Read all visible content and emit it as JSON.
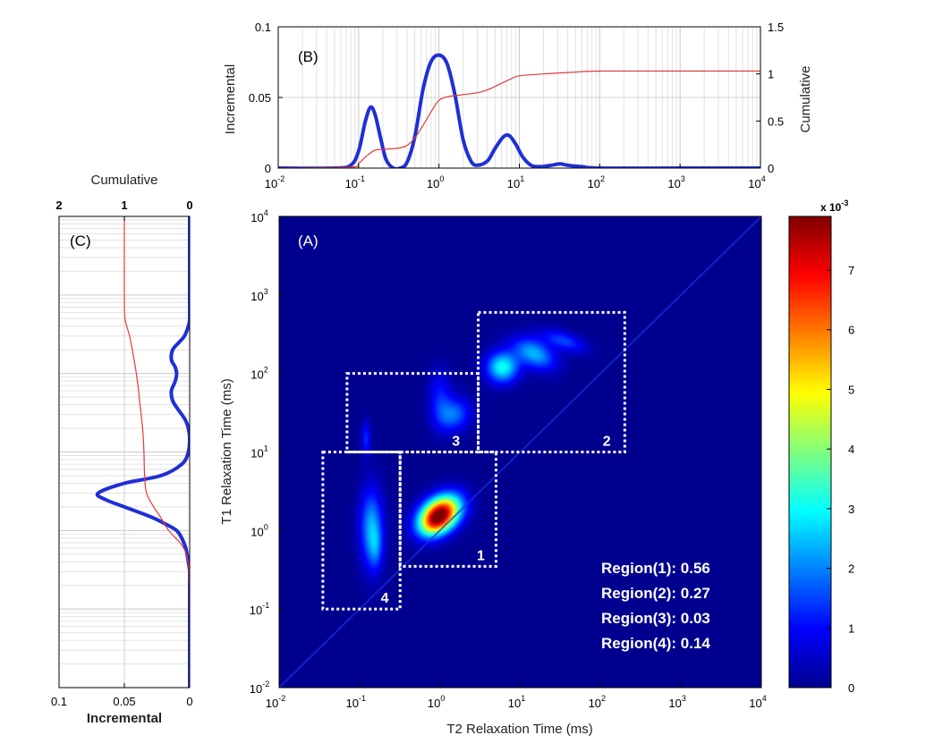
{
  "chart_data": [
    {
      "panel": "B",
      "type": "line",
      "panel_label": "(B)",
      "xlabel": "",
      "ylabel": "Incremental",
      "y2label": "Cumulative",
      "xscale": "log",
      "xlim": [
        0.01,
        10000
      ],
      "ylim": [
        0,
        0.1
      ],
      "y2lim": [
        0,
        1.5
      ],
      "x_ticks": [
        "10",
        "10",
        "10",
        "10",
        "10",
        "10",
        "10"
      ],
      "x_tick_exps": [
        "-2",
        "-1",
        "0",
        "1",
        "2",
        "3",
        "4"
      ],
      "y_ticks": [
        "0",
        "0.05",
        "0.1"
      ],
      "y2_ticks": [
        "0",
        "0.5",
        "1",
        "1.5"
      ],
      "grid": true,
      "series": [
        {
          "axis": "left",
          "color": "#1f2fd6",
          "x": [
            0.01,
            0.05,
            0.08,
            0.1,
            0.12,
            0.14,
            0.16,
            0.19,
            0.22,
            0.27,
            0.33,
            0.4,
            0.5,
            0.63,
            0.79,
            1.0,
            1.26,
            1.58,
            2.0,
            2.5,
            3.0,
            4.0,
            5.0,
            6.3,
            7.5,
            9.0,
            11,
            14,
            18,
            25,
            32,
            40,
            60,
            100,
            1000,
            10000
          ],
          "y": [
            0,
            0,
            0.002,
            0.012,
            0.032,
            0.043,
            0.038,
            0.02,
            0.006,
            0,
            0,
            0.004,
            0.022,
            0.055,
            0.075,
            0.08,
            0.074,
            0.052,
            0.02,
            0.005,
            0.002,
            0.005,
            0.014,
            0.022,
            0.023,
            0.017,
            0.008,
            0.002,
            0.001,
            0.002,
            0.003,
            0.002,
            0.001,
            0,
            0,
            0
          ]
        },
        {
          "axis": "right",
          "color": "#e23b3b",
          "x": [
            0.01,
            0.08,
            0.1,
            0.13,
            0.16,
            0.2,
            0.3,
            0.4,
            0.5,
            0.63,
            0.8,
            1.0,
            1.3,
            1.6,
            2.0,
            3.0,
            4.0,
            6.0,
            8.0,
            10,
            20,
            50,
            100,
            1000,
            10000
          ],
          "y": [
            0,
            0.01,
            0.05,
            0.14,
            0.19,
            0.2,
            0.21,
            0.24,
            0.32,
            0.45,
            0.6,
            0.72,
            0.76,
            0.77,
            0.78,
            0.8,
            0.83,
            0.9,
            0.95,
            0.98,
            1.0,
            1.02,
            1.03,
            1.03,
            1.03
          ]
        }
      ]
    },
    {
      "panel": "C",
      "type": "line",
      "panel_label": "(C)",
      "orientation": "vertical",
      "xlabel": "Incremental",
      "x2label": "Cumulative",
      "yscale": "log",
      "ylim": [
        0.01,
        10000
      ],
      "xlim_reversed": [
        0.1,
        0
      ],
      "x2lim_reversed": [
        2,
        0
      ],
      "x_ticks": [
        "0.1",
        "0.05",
        "0"
      ],
      "x2_ticks": [
        "2",
        "1",
        "0"
      ],
      "grid": true,
      "series": [
        {
          "axis": "bottom",
          "color": "#1f2fd6",
          "y": [
            10000,
            1000,
            500,
            400,
            300,
            250,
            200,
            150,
            120,
            100,
            80,
            60,
            45,
            35,
            30,
            25,
            20,
            15,
            10,
            7,
            5,
            4,
            3,
            2.5,
            2,
            1.5,
            1.2,
            1.0,
            0.8,
            0.6,
            0.5,
            0.4,
            0.3,
            0.2,
            0.1,
            0.01
          ],
          "x": [
            0,
            0,
            0,
            0.001,
            0.004,
            0.008,
            0.013,
            0.014,
            0.011,
            0.01,
            0.011,
            0.014,
            0.013,
            0.009,
            0.006,
            0.003,
            0.001,
            0,
            0.001,
            0.006,
            0.022,
            0.05,
            0.07,
            0.065,
            0.05,
            0.03,
            0.018,
            0.01,
            0.006,
            0.003,
            0.002,
            0.001,
            0,
            0,
            0,
            0
          ]
        },
        {
          "axis": "top",
          "color": "#e23b3b",
          "y": [
            10000,
            1000,
            500,
            300,
            150,
            80,
            40,
            20,
            10,
            5,
            3,
            2,
            1.5,
            1.0,
            0.7,
            0.5,
            0.3,
            0.1,
            0.01
          ],
          "x": [
            1.0,
            1.0,
            0.99,
            0.92,
            0.85,
            0.8,
            0.76,
            0.72,
            0.7,
            0.69,
            0.66,
            0.55,
            0.45,
            0.32,
            0.15,
            0.05,
            0.01,
            0,
            0
          ]
        }
      ]
    },
    {
      "panel": "A",
      "type": "heatmap",
      "panel_label": "(A)",
      "xlabel": "T2 Relaxation Time (ms)",
      "ylabel": "T1 Relaxation Time (ms)",
      "xscale": "log",
      "yscale": "log",
      "xlim": [
        0.01,
        10000
      ],
      "ylim": [
        0.01,
        10000
      ],
      "colorbar_label": "x 10",
      "colorbar_exp": "-3",
      "colorbar_ticks": [
        "0",
        "1",
        "2",
        "3",
        "4",
        "5",
        "6",
        "7"
      ],
      "colorbar_max": 7.9,
      "background_color": "#00008f",
      "peaks": [
        {
          "t2": 1.0,
          "t1": 1.6,
          "amp": 7.9,
          "s2": 0.14,
          "s1": 0.2,
          "rot": -50
        },
        {
          "t2": 0.85,
          "t1": 1.2,
          "amp": 1.2,
          "s2": 0.1,
          "s1": 0.14,
          "rot": -45
        },
        {
          "t2": 0.14,
          "t1": 1.1,
          "amp": 2.3,
          "s2": 0.1,
          "s1": 0.35,
          "rot": 0
        },
        {
          "t2": 0.16,
          "t1": 0.6,
          "amp": 1.0,
          "s2": 0.06,
          "s1": 0.2,
          "rot": 0
        },
        {
          "t2": 0.12,
          "t1": 15,
          "amp": 1.3,
          "s2": 0.04,
          "s1": 0.15,
          "rot": 0
        },
        {
          "t2": 6.0,
          "t1": 120,
          "amp": 3.1,
          "s2": 0.14,
          "s1": 0.14,
          "rot": -30
        },
        {
          "t2": 15,
          "t1": 180,
          "amp": 2.4,
          "s2": 0.2,
          "s1": 0.12,
          "rot": -30
        },
        {
          "t2": 35,
          "t1": 260,
          "amp": 1.5,
          "s2": 0.2,
          "s1": 0.08,
          "rot": -20
        },
        {
          "t2": 1.5,
          "t1": 30,
          "amp": 1.8,
          "s2": 0.14,
          "s1": 0.16,
          "rot": -40
        },
        {
          "t2": 1.0,
          "t1": 50,
          "amp": 1.1,
          "s2": 0.1,
          "s1": 0.25,
          "rot": 0
        }
      ],
      "regions": [
        {
          "label": "1",
          "t2": [
            0.32,
            5.0
          ],
          "t1": [
            0.35,
            10
          ]
        },
        {
          "label": "2",
          "t2": [
            3.0,
            200
          ],
          "t1": [
            10,
            600
          ]
        },
        {
          "label": "3",
          "t2": [
            0.07,
            3.0
          ],
          "t1": [
            10,
            100
          ]
        },
        {
          "label": "4",
          "t2": [
            0.035,
            0.32
          ],
          "t1": [
            0.1,
            10
          ]
        }
      ],
      "region_fractions": [
        {
          "label": "Region(1): 0.56"
        },
        {
          "label": "Region(2): 0.27"
        },
        {
          "label": "Region(3): 0.03"
        },
        {
          "label": "Region(4): 0.14"
        }
      ]
    }
  ]
}
